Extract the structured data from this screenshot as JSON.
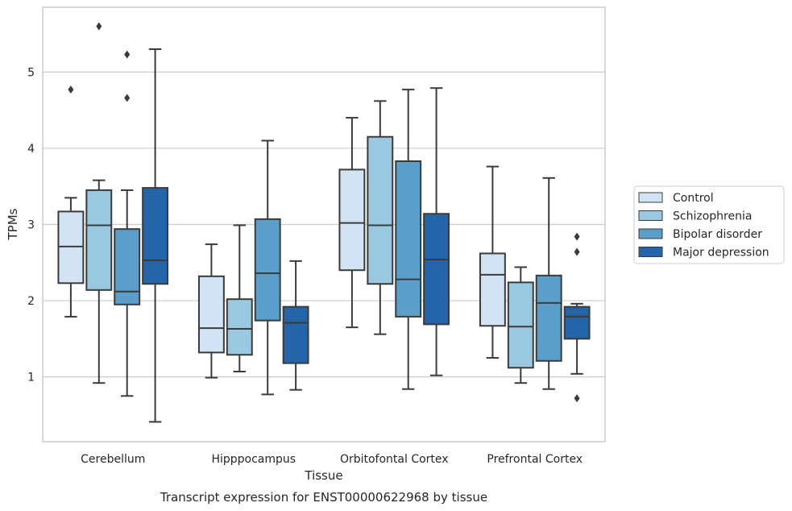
{
  "caption": "Transcript expression for ENST00000622968 by tissue",
  "chart_data": {
    "type": "box",
    "xlabel": "Tissue",
    "ylabel": "TPMs",
    "ylim": [
      0.15,
      5.85
    ],
    "yticks": [
      1,
      2,
      3,
      4,
      5
    ],
    "grid": "horizontal",
    "legend_position": "right",
    "categories": [
      "Cerebellum",
      "Hipppocampus",
      "Orbitofontal Cortex",
      "Prefrontal Cortex"
    ],
    "series": [
      {
        "name": "Control",
        "color": "#d2e3f3",
        "boxes": [
          {
            "whisker_low": 1.79,
            "q1": 2.23,
            "median": 2.71,
            "q3": 3.17,
            "whisker_high": 3.35,
            "outliers": [
              4.77
            ]
          },
          {
            "whisker_low": 0.99,
            "q1": 1.32,
            "median": 1.64,
            "q3": 2.32,
            "whisker_high": 2.74,
            "outliers": []
          },
          {
            "whisker_low": 1.65,
            "q1": 2.4,
            "median": 3.02,
            "q3": 3.72,
            "whisker_high": 4.4,
            "outliers": []
          },
          {
            "whisker_low": 1.25,
            "q1": 1.67,
            "median": 2.34,
            "q3": 2.62,
            "whisker_high": 3.76,
            "outliers": []
          }
        ]
      },
      {
        "name": "Schizophrenia",
        "color": "#9ac8e0",
        "boxes": [
          {
            "whisker_low": 0.92,
            "q1": 2.14,
            "median": 2.99,
            "q3": 3.45,
            "whisker_high": 3.58,
            "outliers": [
              5.6
            ]
          },
          {
            "whisker_low": 1.07,
            "q1": 1.29,
            "median": 1.63,
            "q3": 2.02,
            "whisker_high": 2.99,
            "outliers": []
          },
          {
            "whisker_low": 1.56,
            "q1": 2.22,
            "median": 2.99,
            "q3": 4.15,
            "whisker_high": 4.62,
            "outliers": []
          },
          {
            "whisker_low": 0.92,
            "q1": 1.12,
            "median": 1.66,
            "q3": 2.24,
            "whisker_high": 2.44,
            "outliers": []
          }
        ]
      },
      {
        "name": "Bipolar disorder",
        "color": "#5a9ec9",
        "boxes": [
          {
            "whisker_low": 0.75,
            "q1": 1.95,
            "median": 2.12,
            "q3": 2.94,
            "whisker_high": 3.45,
            "outliers": [
              4.66,
              5.23
            ]
          },
          {
            "whisker_low": 0.77,
            "q1": 1.74,
            "median": 2.36,
            "q3": 3.07,
            "whisker_high": 4.1,
            "outliers": []
          },
          {
            "whisker_low": 0.84,
            "q1": 1.79,
            "median": 2.28,
            "q3": 3.83,
            "whisker_high": 4.77,
            "outliers": []
          },
          {
            "whisker_low": 0.84,
            "q1": 1.21,
            "median": 1.97,
            "q3": 2.33,
            "whisker_high": 3.61,
            "outliers": []
          }
        ]
      },
      {
        "name": "Major depression",
        "color": "#2464a8",
        "boxes": [
          {
            "whisker_low": 0.41,
            "q1": 2.22,
            "median": 2.53,
            "q3": 3.48,
            "whisker_high": 5.3,
            "outliers": []
          },
          {
            "whisker_low": 0.83,
            "q1": 1.18,
            "median": 1.71,
            "q3": 1.92,
            "whisker_high": 2.52,
            "outliers": []
          },
          {
            "whisker_low": 1.02,
            "q1": 1.69,
            "median": 2.54,
            "q3": 3.14,
            "whisker_high": 4.79,
            "outliers": []
          },
          {
            "whisker_low": 1.04,
            "q1": 1.5,
            "median": 1.79,
            "q3": 1.92,
            "whisker_high": 1.96,
            "outliers": [
              0.72,
              2.64,
              2.84
            ]
          }
        ]
      }
    ]
  }
}
